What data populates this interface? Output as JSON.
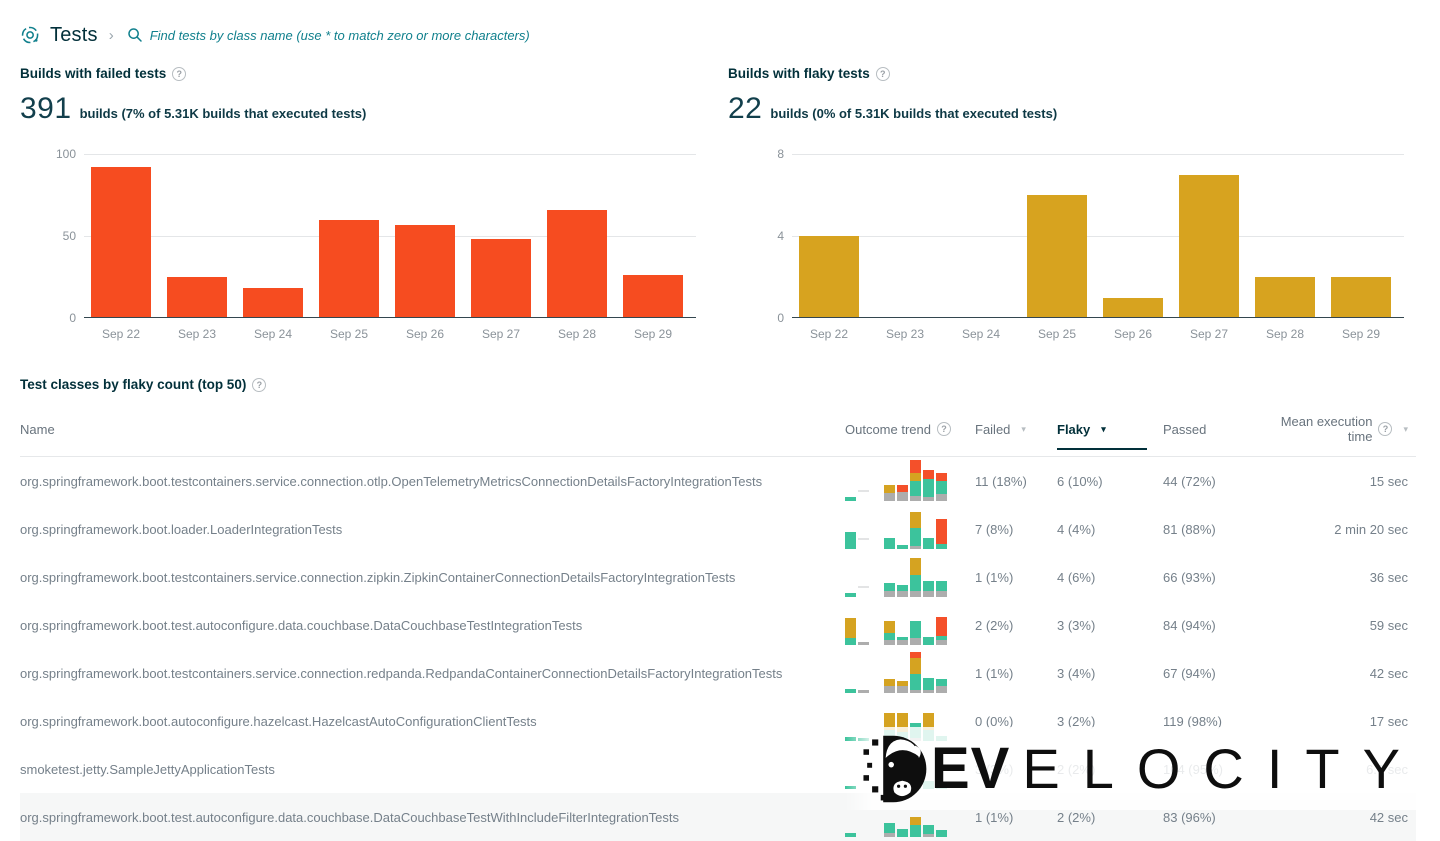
{
  "header": {
    "title": "Tests",
    "breadcrumb_separator": "›",
    "search_placeholder": "Find tests by class name (use * to match zero or more characters)"
  },
  "colors": {
    "accent_teal": "#11808d",
    "failed_red": "#f64c20",
    "flaky_gold": "#d7a31f",
    "passed_green": "#3cc39c",
    "neutral_gray": "#adadad",
    "heading_dark": "#02303a"
  },
  "failed_builds": {
    "title": "Builds with failed tests",
    "count": "391",
    "subtitle": "builds (7% of 5.31K builds that executed tests)"
  },
  "flaky_builds": {
    "title": "Builds with flaky tests",
    "count": "22",
    "subtitle": "builds (0% of 5.31K builds that executed tests)"
  },
  "chart_data": [
    {
      "type": "bar",
      "title": "Builds with failed tests",
      "categories": [
        "Sep 22",
        "Sep 23",
        "Sep 24",
        "Sep 25",
        "Sep 26",
        "Sep 27",
        "Sep 28",
        "Sep 29"
      ],
      "values": [
        92,
        25,
        18,
        60,
        57,
        48,
        66,
        26
      ],
      "xlabel": "",
      "ylabel": "",
      "ylim": [
        0,
        100
      ],
      "yticks": [
        0,
        50,
        100
      ],
      "grid": true,
      "color": "#f64c20"
    },
    {
      "type": "bar",
      "title": "Builds with flaky tests",
      "categories": [
        "Sep 22",
        "Sep 23",
        "Sep 24",
        "Sep 25",
        "Sep 26",
        "Sep 27",
        "Sep 28",
        "Sep 29"
      ],
      "values": [
        4,
        0,
        0,
        6,
        1,
        7,
        2,
        2
      ],
      "xlabel": "",
      "ylabel": "",
      "ylim": [
        0,
        8
      ],
      "yticks": [
        0,
        4,
        8
      ],
      "grid": true,
      "color": "#d7a31f"
    }
  ],
  "table": {
    "title": "Test classes by flaky count (top 50)",
    "columns": [
      {
        "label": "Name"
      },
      {
        "label": "Outcome trend",
        "help": true
      },
      {
        "label": "Failed",
        "sortable": true
      },
      {
        "label": "Flaky",
        "sortable": true,
        "active": true
      },
      {
        "label": "Passed"
      },
      {
        "label": "Mean execution time",
        "help": true,
        "sortable": true
      }
    ],
    "rows": [
      {
        "name": "org.springframework.boot.testcontainers.service.connection.otlp.OpenTelemetryMetricsConnectionDetailsFactoryIntegrationTests",
        "failed": "11 (18%)",
        "flaky": "6 (10%)",
        "passed": "44 (72%)",
        "mean": "15 sec",
        "trend": [
          [
            [
              "green",
              4
            ]
          ],
          "line",
          null,
          [
            [
              "gold",
              8
            ],
            [
              "gray",
              8
            ]
          ],
          [
            [
              "red",
              7
            ],
            [
              "gray",
              9
            ]
          ],
          [
            [
              "red",
              13
            ],
            [
              "gold",
              8
            ],
            [
              "green",
              15
            ],
            [
              "gray",
              5
            ]
          ],
          [
            [
              "red",
              9
            ],
            [
              "green",
              18
            ],
            [
              "gray",
              4
            ]
          ],
          [
            [
              "red",
              8
            ],
            [
              "green",
              13
            ],
            [
              "gray",
              7
            ]
          ]
        ]
      },
      {
        "name": "org.springframework.boot.loader.LoaderIntegrationTests",
        "failed": "7 (8%)",
        "flaky": "4 (4%)",
        "passed": "81 (88%)",
        "mean": "2 min 20 sec",
        "trend": [
          [
            [
              "green",
              17
            ]
          ],
          "line",
          null,
          [
            [
              "green",
              11
            ]
          ],
          [
            [
              "green",
              4
            ]
          ],
          [
            [
              "gold",
              16
            ],
            [
              "green",
              18
            ],
            [
              "gray",
              3
            ]
          ],
          [
            [
              "green",
              11
            ]
          ],
          [
            [
              "red",
              25
            ],
            [
              "green",
              5
            ]
          ]
        ]
      },
      {
        "name": "org.springframework.boot.testcontainers.service.connection.zipkin.ZipkinContainerConnectionDetailsFactoryIntegrationTests",
        "failed": "1 (1%)",
        "flaky": "4 (6%)",
        "passed": "66 (93%)",
        "mean": "36 sec",
        "trend": [
          [
            [
              "green",
              4
            ]
          ],
          "line",
          null,
          [
            [
              "green",
              8
            ],
            [
              "gray",
              6
            ]
          ],
          [
            [
              "green",
              6
            ],
            [
              "gray",
              6
            ]
          ],
          [
            [
              "gold",
              17
            ],
            [
              "green",
              16
            ],
            [
              "gray",
              6
            ]
          ],
          [
            [
              "green",
              10
            ],
            [
              "gray",
              6
            ]
          ],
          [
            [
              "green",
              10
            ],
            [
              "gray",
              6
            ]
          ]
        ]
      },
      {
        "name": "org.springframework.boot.test.autoconfigure.data.couchbase.DataCouchbaseTestIntegrationTests",
        "failed": "2 (2%)",
        "flaky": "3 (3%)",
        "passed": "84 (94%)",
        "mean": "59 sec",
        "trend": [
          [
            [
              "gold",
              20
            ],
            [
              "green",
              7
            ]
          ],
          [
            [
              "gray",
              3
            ]
          ],
          null,
          [
            [
              "gold",
              12
            ],
            [
              "green",
              7
            ],
            [
              "gray",
              5
            ]
          ],
          [
            [
              "green",
              3
            ],
            [
              "gray",
              5
            ]
          ],
          [
            [
              "green",
              17
            ],
            [
              "gray",
              7
            ]
          ],
          [
            [
              "green",
              8
            ]
          ],
          [
            [
              "red",
              19
            ],
            [
              "green",
              4
            ],
            [
              "gray",
              5
            ]
          ]
        ]
      },
      {
        "name": "org.springframework.boot.testcontainers.service.connection.redpanda.RedpandaContainerConnectionDetailsFactoryIntegrationTests",
        "failed": "1 (1%)",
        "flaky": "3 (4%)",
        "passed": "67 (94%)",
        "mean": "42 sec",
        "trend": [
          [
            [
              "green",
              4
            ]
          ],
          [
            [
              "gray",
              3
            ]
          ],
          null,
          [
            [
              "gold",
              7
            ],
            [
              "gray",
              7
            ]
          ],
          [
            [
              "gold",
              5
            ],
            [
              "gray",
              7
            ]
          ],
          [
            [
              "red",
              6
            ],
            [
              "gold",
              16
            ],
            [
              "green",
              16
            ],
            [
              "gray",
              3
            ]
          ],
          [
            [
              "green",
              12
            ],
            [
              "gray",
              3
            ]
          ],
          [
            [
              "green",
              7
            ],
            [
              "gray",
              7
            ]
          ]
        ]
      },
      {
        "name": "org.springframework.boot.autoconfigure.hazelcast.HazelcastAutoConfigurationClientTests",
        "failed": "0 (0%)",
        "flaky": "3 (2%)",
        "passed": "119 (98%)",
        "mean": "17 sec",
        "trend": [
          [
            [
              "green",
              4
            ]
          ],
          [
            [
              "green",
              3
            ]
          ],
          null,
          [
            [
              "gold",
              17
            ],
            [
              "green",
              11
            ]
          ],
          [
            [
              "gold",
              19
            ],
            [
              "green",
              9
            ]
          ],
          [
            [
              "green",
              15
            ],
            [
              "gray",
              3
            ]
          ],
          [
            [
              "gold",
              17
            ],
            [
              "green",
              11
            ]
          ],
          [
            [
              "green",
              5
            ]
          ]
        ]
      },
      {
        "name": "smoketest.jetty.SampleJettyApplicationTests",
        "failed": "3 (3%)",
        "flaky": "2 (2%)",
        "passed": "104 (95%)",
        "mean": "6.6 sec",
        "trend": [
          [
            [
              "green",
              3
            ]
          ],
          null,
          null,
          [
            [
              "red",
              6
            ],
            [
              "green",
              8
            ]
          ],
          [
            [
              "gold",
              6
            ],
            [
              "green",
              6
            ]
          ],
          [
            [
              "red",
              10
            ],
            [
              "green",
              12
            ]
          ],
          [
            [
              "green",
              8
            ]
          ],
          [
            [
              "green",
              6
            ]
          ]
        ]
      },
      {
        "name": "org.springframework.boot.test.autoconfigure.data.couchbase.DataCouchbaseTestWithIncludeFilterIntegrationTests",
        "failed": "1 (1%)",
        "flaky": "2 (2%)",
        "passed": "83 (96%)",
        "mean": "42 sec",
        "highlight": true,
        "trend": [
          [
            [
              "green",
              4
            ]
          ],
          null,
          null,
          [
            [
              "green",
              10
            ],
            [
              "gray",
              4
            ]
          ],
          [
            [
              "green",
              8
            ]
          ],
          [
            [
              "gold",
              8
            ],
            [
              "green",
              12
            ]
          ],
          [
            [
              "green",
              9
            ],
            [
              "gray",
              3
            ]
          ],
          [
            [
              "green",
              7
            ]
          ]
        ]
      }
    ]
  },
  "watermark": {
    "logo": "develocity-gorilla-logo",
    "text_bold": "EV",
    "text_light": "ELOCITY"
  }
}
